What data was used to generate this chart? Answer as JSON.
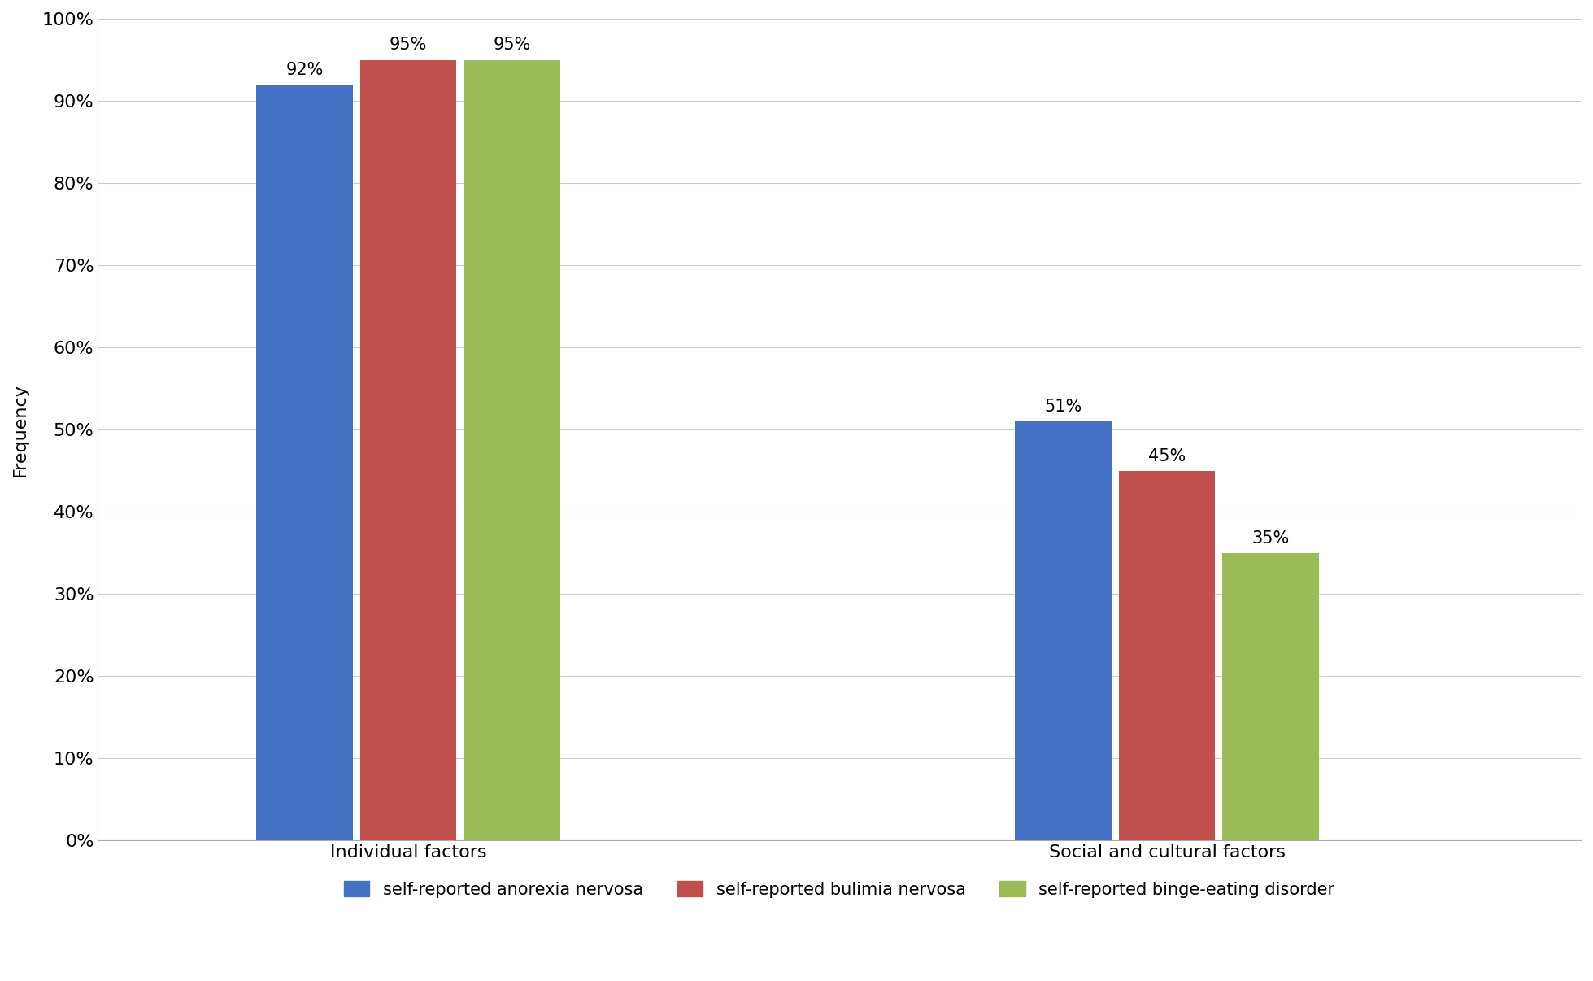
{
  "categories": [
    "Individual factors",
    "Social and cultural factors"
  ],
  "series": [
    {
      "name": "self-reported anorexia nervosa",
      "color": "#4472C4",
      "values": [
        92,
        51
      ]
    },
    {
      "name": "self-reported bulimia nervosa",
      "color": "#C0504D",
      "values": [
        95,
        45
      ]
    },
    {
      "name": "self-reported binge-eating disorder",
      "color": "#9BBB59",
      "values": [
        95,
        35
      ]
    }
  ],
  "ylabel": "Frequency",
  "ylim": [
    0,
    100
  ],
  "yticks": [
    0,
    10,
    20,
    30,
    40,
    50,
    60,
    70,
    80,
    90,
    100
  ],
  "ytick_labels": [
    "0%",
    "10%",
    "20%",
    "30%",
    "40%",
    "50%",
    "60%",
    "70%",
    "80%",
    "90%",
    "100%"
  ],
  "background_color": "#FFFFFF",
  "grid_color": "#CCCCCC",
  "label_fontsize": 16,
  "tick_fontsize": 16,
  "legend_fontsize": 15,
  "annotation_fontsize": 15,
  "bar_width": 0.28,
  "group_centers": [
    1.0,
    3.2
  ],
  "xlim": [
    0.1,
    4.4
  ]
}
